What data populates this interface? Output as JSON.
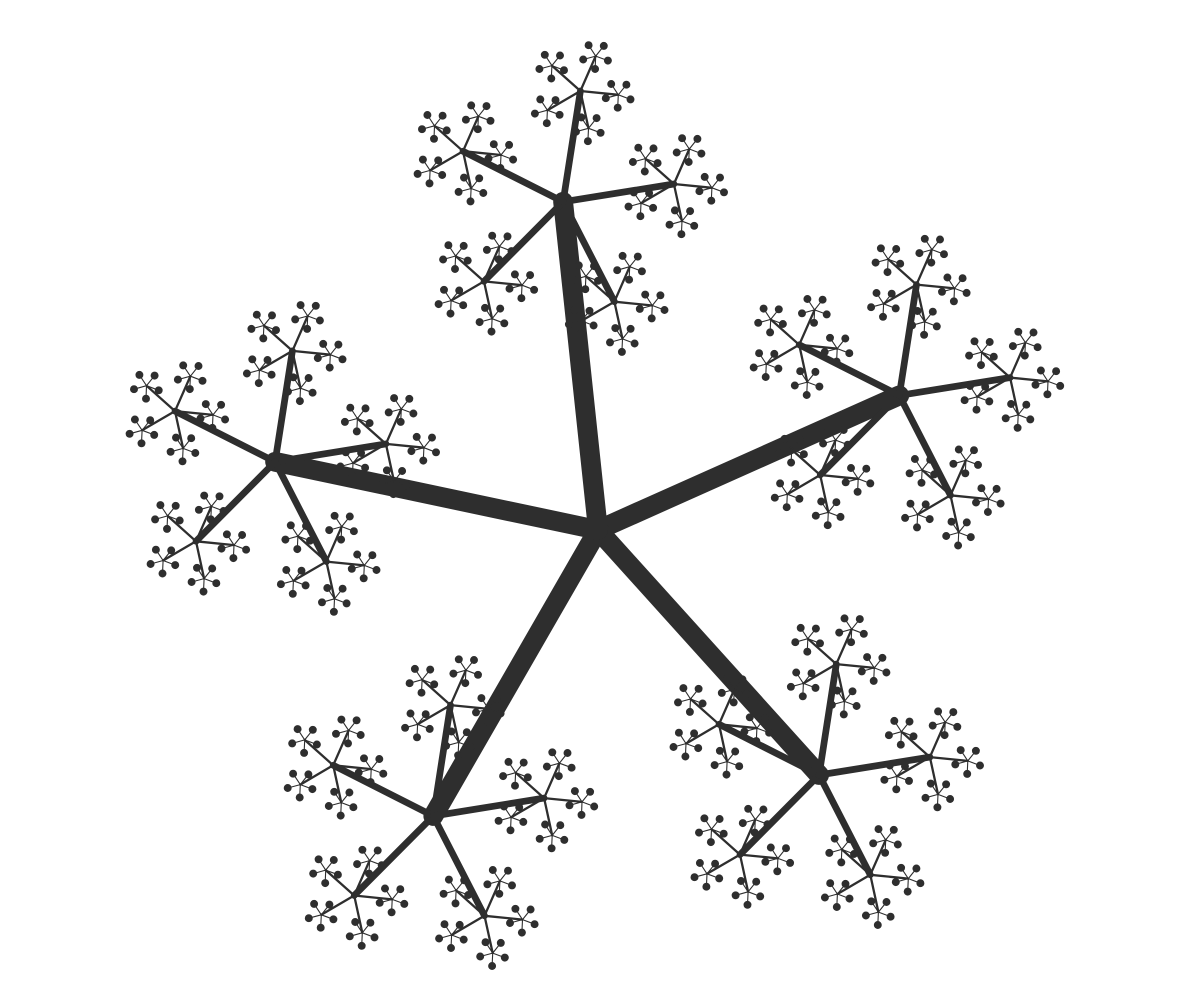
{
  "figure": {
    "kind": "snowflake-fractal",
    "arms": 5,
    "depth": 4,
    "fill_color": "#2e2e2e",
    "background_color": "#ffffff"
  }
}
